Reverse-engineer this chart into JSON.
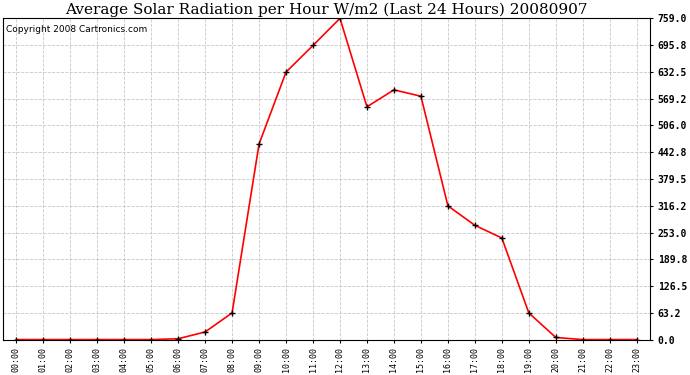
{
  "title": "Average Solar Radiation per Hour W/m2 (Last 24 Hours) 20080907",
  "copyright": "Copyright 2008 Cartronics.com",
  "hours": [
    "00:00",
    "01:00",
    "02:00",
    "03:00",
    "04:00",
    "05:00",
    "06:00",
    "07:00",
    "08:00",
    "09:00",
    "10:00",
    "11:00",
    "12:00",
    "13:00",
    "14:00",
    "15:00",
    "16:00",
    "17:00",
    "18:00",
    "19:00",
    "20:00",
    "21:00",
    "22:00",
    "23:00"
  ],
  "values": [
    0,
    0,
    0,
    0,
    0,
    0,
    2,
    18,
    63,
    462,
    632,
    695,
    759,
    550,
    590,
    575,
    316,
    270,
    240,
    63,
    5,
    0,
    0,
    0
  ],
  "line_color": "#ff0000",
  "marker_color": "#000000",
  "bg_color": "#ffffff",
  "grid_color": "#c8c8c8",
  "yticks": [
    0.0,
    63.2,
    126.5,
    189.8,
    253.0,
    316.2,
    379.5,
    442.8,
    506.0,
    569.2,
    632.5,
    695.8,
    759.0
  ],
  "ylim": [
    0,
    759.0
  ],
  "title_fontsize": 11,
  "copyright_fontsize": 6.5
}
